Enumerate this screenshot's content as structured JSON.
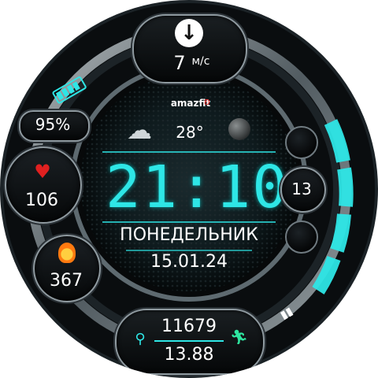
{
  "top": {
    "icon": "download-arrow-icon",
    "wind_value": "7",
    "wind_unit": "м/с"
  },
  "brand": "amazfit",
  "weather": {
    "icon": "cloudy-rain-icon",
    "temperature": "28°",
    "moon_icon": "moon-phase-icon"
  },
  "battery": {
    "percent": "95%",
    "icon": "battery-icon"
  },
  "heart": {
    "icon": "heart-icon",
    "value": "106"
  },
  "calories": {
    "icon": "flame-icon",
    "value": "367"
  },
  "time": {
    "display": "21:10"
  },
  "weekday": "ПОНЕДЕЛЬНИК",
  "date": "15.01.24",
  "right": {
    "value": "13"
  },
  "bottom": {
    "steps": "11679",
    "distance": "13.88",
    "location_icon": "location-pin-icon",
    "run_icon": "running-icon",
    "footsteps_icon": "footsteps-icon"
  },
  "colors": {
    "accent": "#2ee6e6",
    "heart": "#e02020",
    "flame": "#ff7a10",
    "run": "#2ee6a0"
  },
  "progress": {
    "segments_total": 7,
    "segments_lit": 7
  }
}
